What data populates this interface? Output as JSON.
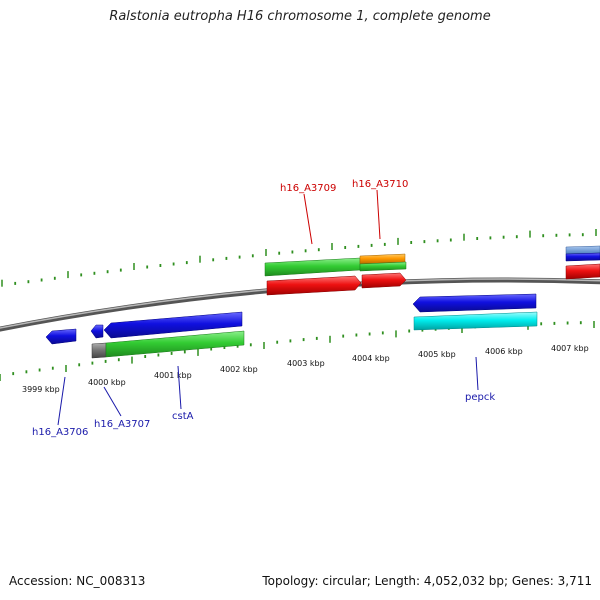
{
  "title": "Ralstonia eutropha H16 chromosome 1, complete genome",
  "footer": {
    "accession": "Accession: NC_008313",
    "summary": "Topology: circular; Length: 4,052,032 bp; Genes: 3,711"
  },
  "colors": {
    "backbone": "#7a7a7a",
    "tick": "#2f8f1f",
    "forward_label": "#cc0000",
    "reverse_label": "#1a1aaa",
    "blue": "#1010e0",
    "green": "#33cc33",
    "red": "#ee1111",
    "orange": "#ff9900",
    "cyan": "#00eeee",
    "gray": "#777777"
  },
  "scale_labels": [
    "3999 kbp",
    "4000 kbp",
    "4001 kbp",
    "4002 kbp",
    "4003 kbp",
    "4004 kbp",
    "4005 kbp",
    "4006 kbp",
    "4007 kbp"
  ],
  "gene_labels": {
    "h16_A3709": "h16_A3709",
    "h16_A3710": "h16_A3710",
    "h16_A3706": "h16_A3706",
    "h16_A3707": "h16_A3707",
    "cstA": "cstA",
    "pepck": "pepck"
  }
}
